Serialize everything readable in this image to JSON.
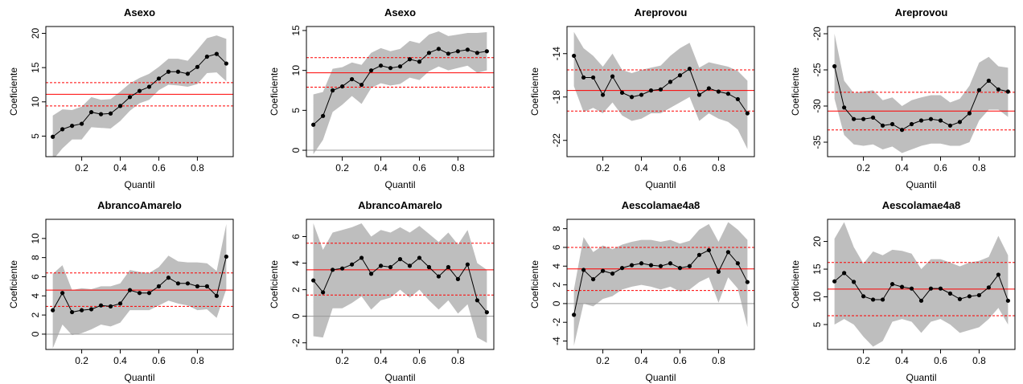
{
  "chart_data": [
    {
      "type": "line",
      "title": "Asexo",
      "x_label": "Quantil",
      "y_label": "Coeficiente",
      "x": [
        0.05,
        0.1,
        0.15,
        0.2,
        0.25,
        0.3,
        0.35,
        0.4,
        0.45,
        0.5,
        0.55,
        0.6,
        0.65,
        0.7,
        0.75,
        0.8,
        0.85,
        0.9,
        0.95
      ],
      "xlim": [
        0.014,
        0.986
      ],
      "xticks": [
        0.2,
        0.4,
        0.6,
        0.8
      ],
      "ylim": [
        2,
        21
      ],
      "yticks": [
        5,
        10,
        15,
        20
      ],
      "series": [
        {
          "color": "#000000",
          "values": [
            4.9,
            6.0,
            6.5,
            6.8,
            8.5,
            8.2,
            8.3,
            9.4,
            10.7,
            11.6,
            12.2,
            13.4,
            14.4,
            14.4,
            14.1,
            15.1,
            16.6,
            17.0,
            15.6
          ]
        }
      ],
      "band": {
        "color": "#bebebe",
        "lower": [
          1.5,
          3.2,
          4.5,
          4.5,
          6.3,
          6.2,
          6.1,
          7.2,
          8.7,
          9.8,
          10.3,
          11.7,
          12.5,
          12.4,
          12.2,
          12.6,
          14.2,
          14.3,
          13.0
        ],
        "upper": [
          8.0,
          8.9,
          8.8,
          9.3,
          10.7,
          10.3,
          10.4,
          11.5,
          12.7,
          13.5,
          14.1,
          15.1,
          16.3,
          16.3,
          16.0,
          17.6,
          19.3,
          19.7,
          19.2
        ]
      },
      "estimate": {
        "color": "#ff0000",
        "value": 11.1,
        "lower": 9.4,
        "upper": 12.8
      }
    },
    {
      "type": "line",
      "title": "Asexo",
      "x_label": "Quantil",
      "y_label": "Coeficiente",
      "x": [
        0.05,
        0.1,
        0.15,
        0.2,
        0.25,
        0.3,
        0.35,
        0.4,
        0.45,
        0.5,
        0.55,
        0.6,
        0.65,
        0.7,
        0.75,
        0.8,
        0.85,
        0.9,
        0.95
      ],
      "xlim": [
        0.014,
        0.986
      ],
      "xticks": [
        0.2,
        0.4,
        0.6,
        0.8
      ],
      "ylim": [
        -0.8,
        15.5
      ],
      "yticks": [
        0,
        5,
        10,
        15
      ],
      "series": [
        {
          "color": "#000000",
          "values": [
            3.2,
            4.3,
            7.5,
            8.0,
            8.9,
            8.2,
            10.0,
            10.6,
            10.3,
            10.5,
            11.4,
            11.1,
            12.2,
            12.7,
            12.1,
            12.4,
            12.6,
            12.2,
            12.4
          ]
        }
      ],
      "band": {
        "color": "#bebebe",
        "lower": [
          -0.5,
          1.3,
          4.8,
          5.7,
          6.8,
          5.8,
          7.8,
          8.4,
          8.1,
          8.3,
          9.1,
          8.8,
          9.9,
          10.5,
          10.0,
          10.3,
          10.6,
          9.7,
          10.0
        ],
        "upper": [
          7.0,
          7.3,
          10.2,
          10.4,
          11.0,
          10.7,
          12.2,
          12.8,
          12.4,
          12.7,
          13.7,
          13.4,
          14.5,
          14.9,
          14.3,
          14.5,
          14.7,
          14.7,
          14.8
        ]
      },
      "estimate": {
        "color": "#ff0000",
        "value": 9.7,
        "lower": 7.9,
        "upper": 11.6
      },
      "reference_line": {
        "color": "#999999",
        "value": 0
      }
    },
    {
      "type": "line",
      "title": "Areprovou",
      "x_label": "Quantil",
      "y_label": "Coeficiente",
      "x": [
        0.05,
        0.1,
        0.15,
        0.2,
        0.25,
        0.3,
        0.35,
        0.4,
        0.45,
        0.5,
        0.55,
        0.6,
        0.65,
        0.7,
        0.75,
        0.8,
        0.85,
        0.9,
        0.95
      ],
      "xlim": [
        0.014,
        0.986
      ],
      "xticks": [
        0.2,
        0.4,
        0.6,
        0.8
      ],
      "ylim": [
        -23.5,
        -11.5
      ],
      "yticks": [
        -22,
        -18,
        -14
      ],
      "series": [
        {
          "color": "#000000",
          "values": [
            -14.2,
            -16.2,
            -16.2,
            -17.8,
            -16.1,
            -17.6,
            -18.0,
            -17.8,
            -17.4,
            -17.3,
            -16.6,
            -16.0,
            -15.4,
            -17.8,
            -17.2,
            -17.5,
            -17.7,
            -18.2,
            -19.5
          ]
        }
      ],
      "band": {
        "color": "#bebebe",
        "lower": [
          -17.0,
          -19.4,
          -19.0,
          -19.5,
          -18.5,
          -19.7,
          -20.2,
          -20.0,
          -19.5,
          -19.5,
          -19.0,
          -18.5,
          -18.0,
          -20.2,
          -19.5,
          -20.0,
          -20.3,
          -21.0,
          -22.8
        ],
        "upper": [
          -12.0,
          -13.5,
          -14.2,
          -15.2,
          -14.0,
          -15.5,
          -15.8,
          -15.5,
          -15.3,
          -15.1,
          -14.2,
          -13.5,
          -13.0,
          -15.3,
          -14.8,
          -15.0,
          -15.2,
          -15.6,
          -16.5
        ]
      },
      "estimate": {
        "color": "#ff0000",
        "value": -17.4,
        "lower": -19.3,
        "upper": -15.5
      }
    },
    {
      "type": "line",
      "title": "Areprovou",
      "x_label": "Quantil",
      "y_label": "Coeficiente",
      "x": [
        0.05,
        0.1,
        0.15,
        0.2,
        0.25,
        0.3,
        0.35,
        0.4,
        0.45,
        0.5,
        0.55,
        0.6,
        0.65,
        0.7,
        0.75,
        0.8,
        0.85,
        0.9,
        0.95
      ],
      "xlim": [
        0.014,
        0.986
      ],
      "xticks": [
        0.2,
        0.4,
        0.6,
        0.8
      ],
      "ylim": [
        -37,
        -19
      ],
      "yticks": [
        -35,
        -30,
        -25,
        -20
      ],
      "series": [
        {
          "color": "#000000",
          "values": [
            -24.5,
            -30.2,
            -31.8,
            -31.8,
            -31.6,
            -32.7,
            -32.5,
            -33.3,
            -32.5,
            -32.0,
            -31.8,
            -32.0,
            -32.7,
            -32.2,
            -31.0,
            -27.8,
            -26.5,
            -27.7,
            -28.0
          ]
        }
      ],
      "band": {
        "color": "#bebebe",
        "lower": [
          -29.0,
          -34.0,
          -35.3,
          -35.5,
          -35.3,
          -36.0,
          -35.6,
          -36.5,
          -36.0,
          -35.5,
          -35.2,
          -35.2,
          -35.5,
          -35.5,
          -35.0,
          -32.0,
          -30.5,
          -30.5,
          -31.5
        ],
        "upper": [
          -20.0,
          -26.5,
          -28.2,
          -28.0,
          -27.8,
          -29.2,
          -28.8,
          -30.0,
          -29.2,
          -28.8,
          -28.5,
          -28.5,
          -29.5,
          -29.0,
          -27.2,
          -24.0,
          -23.2,
          -24.5,
          -24.7
        ]
      },
      "estimate": {
        "color": "#ff0000",
        "value": -30.7,
        "lower": -33.3,
        "upper": -28.1
      }
    },
    {
      "type": "line",
      "title": "AbrancoAmarelo",
      "x_label": "Quantil",
      "y_label": "Coeficiente",
      "x": [
        0.05,
        0.1,
        0.15,
        0.2,
        0.25,
        0.3,
        0.35,
        0.4,
        0.45,
        0.5,
        0.55,
        0.6,
        0.65,
        0.7,
        0.75,
        0.8,
        0.85,
        0.9,
        0.95
      ],
      "xlim": [
        0.014,
        0.986
      ],
      "xticks": [
        0.2,
        0.4,
        0.6,
        0.8
      ],
      "ylim": [
        -1.6,
        12
      ],
      "yticks": [
        0,
        2,
        4,
        6,
        8,
        10
      ],
      "series": [
        {
          "color": "#000000",
          "values": [
            2.5,
            4.3,
            2.3,
            2.5,
            2.6,
            3.0,
            2.9,
            3.2,
            4.6,
            4.3,
            4.3,
            5.0,
            5.9,
            5.3,
            5.3,
            5.0,
            5.0,
            4.0,
            8.1
          ]
        }
      ],
      "band": {
        "color": "#bebebe",
        "lower": [
          -1.5,
          1.0,
          -0.1,
          0.1,
          0.5,
          1.0,
          0.8,
          1.2,
          2.5,
          2.5,
          2.5,
          3.0,
          3.5,
          3.2,
          3.0,
          2.5,
          2.6,
          1.7,
          4.7
        ],
        "upper": [
          6.3,
          7.2,
          4.6,
          4.8,
          4.7,
          5.0,
          5.0,
          5.3,
          6.7,
          6.5,
          6.4,
          7.0,
          8.2,
          7.6,
          7.5,
          7.5,
          7.4,
          6.6,
          11.5
        ]
      },
      "estimate": {
        "color": "#ff0000",
        "value": 4.6,
        "lower": 2.9,
        "upper": 6.4
      },
      "reference_line": {
        "color": "#999999",
        "value": 0
      }
    },
    {
      "type": "line",
      "title": "AbrancoAmarelo",
      "x_label": "Quantil",
      "y_label": "Coeficiente",
      "x": [
        0.05,
        0.1,
        0.15,
        0.2,
        0.25,
        0.3,
        0.35,
        0.4,
        0.45,
        0.5,
        0.55,
        0.6,
        0.65,
        0.7,
        0.75,
        0.8,
        0.85,
        0.9,
        0.95
      ],
      "xlim": [
        0.014,
        0.986
      ],
      "xticks": [
        0.2,
        0.4,
        0.6,
        0.8
      ],
      "ylim": [
        -2.5,
        7.3
      ],
      "yticks": [
        -2,
        0,
        2,
        4,
        6
      ],
      "series": [
        {
          "color": "#000000",
          "values": [
            2.7,
            1.8,
            3.5,
            3.6,
            3.9,
            4.4,
            3.2,
            3.8,
            3.7,
            4.3,
            3.8,
            4.4,
            3.7,
            3.0,
            3.7,
            2.8,
            3.9,
            1.2,
            0.3
          ]
        }
      ],
      "band": {
        "color": "#bebebe",
        "lower": [
          -1.5,
          -1.6,
          0.6,
          0.6,
          1.0,
          1.5,
          0.5,
          1.2,
          1.4,
          2.0,
          1.4,
          2.0,
          1.2,
          0.5,
          1.2,
          0.2,
          0.9,
          -1.6,
          -2.0
        ],
        "upper": [
          7.0,
          5.0,
          6.3,
          6.5,
          6.7,
          7.0,
          6.0,
          6.5,
          6.3,
          6.7,
          6.3,
          6.8,
          6.2,
          5.6,
          6.3,
          5.4,
          6.5,
          4.0,
          3.5
        ]
      },
      "estimate": {
        "color": "#ff0000",
        "value": 3.5,
        "lower": 1.6,
        "upper": 5.5
      },
      "reference_line": {
        "color": "#999999",
        "value": 0
      }
    },
    {
      "type": "line",
      "title": "Aescolamae4a8",
      "x_label": "Quantil",
      "y_label": "Coeficiente",
      "x": [
        0.05,
        0.1,
        0.15,
        0.2,
        0.25,
        0.3,
        0.35,
        0.4,
        0.45,
        0.5,
        0.55,
        0.6,
        0.65,
        0.7,
        0.75,
        0.8,
        0.85,
        0.9,
        0.95
      ],
      "xlim": [
        0.014,
        0.986
      ],
      "xticks": [
        0.2,
        0.4,
        0.6,
        0.8
      ],
      "ylim": [
        -4.9,
        9
      ],
      "yticks": [
        -4,
        -2,
        0,
        2,
        4,
        6,
        8
      ],
      "series": [
        {
          "color": "#000000",
          "values": [
            -1.2,
            3.6,
            2.6,
            3.5,
            3.2,
            3.8,
            4.1,
            4.3,
            4.1,
            4.0,
            4.3,
            3.8,
            4.0,
            5.2,
            5.7,
            3.4,
            5.5,
            4.3,
            2.3
          ]
        }
      ],
      "band": {
        "color": "#bebebe",
        "lower": [
          -4.5,
          0.0,
          -0.3,
          0.5,
          0.8,
          1.5,
          1.8,
          2.0,
          1.8,
          1.5,
          1.8,
          1.3,
          1.5,
          2.3,
          2.8,
          0.1,
          2.8,
          1.6,
          -2.5
        ],
        "upper": [
          1.5,
          7.1,
          5.5,
          6.2,
          5.8,
          6.3,
          6.6,
          6.8,
          6.8,
          6.6,
          6.8,
          6.4,
          6.7,
          7.9,
          8.5,
          6.6,
          8.7,
          7.9,
          6.8
        ]
      },
      "estimate": {
        "color": "#ff0000",
        "value": 3.7,
        "lower": 1.4,
        "upper": 6.0
      },
      "reference_line": {
        "color": "#999999",
        "value": 0
      }
    },
    {
      "type": "line",
      "title": "Aescolamae4a8",
      "x_label": "Quantil",
      "y_label": "Coeficiente",
      "x": [
        0.05,
        0.1,
        0.15,
        0.2,
        0.25,
        0.3,
        0.35,
        0.4,
        0.45,
        0.5,
        0.55,
        0.6,
        0.65,
        0.7,
        0.75,
        0.8,
        0.85,
        0.9,
        0.95
      ],
      "xlim": [
        0.014,
        0.986
      ],
      "xticks": [
        0.2,
        0.4,
        0.6,
        0.8
      ],
      "ylim": [
        0.5,
        24
      ],
      "yticks": [
        5,
        10,
        15,
        20
      ],
      "series": [
        {
          "color": "#000000",
          "values": [
            12.8,
            14.3,
            12.7,
            10.1,
            9.5,
            9.5,
            12.3,
            11.8,
            11.5,
            9.3,
            11.5,
            11.5,
            10.6,
            9.6,
            10.1,
            10.3,
            11.7,
            14.0,
            9.3
          ]
        }
      ],
      "band": {
        "color": "#bebebe",
        "lower": [
          5.0,
          6.0,
          5.0,
          2.8,
          1.0,
          2.0,
          5.5,
          6.0,
          5.5,
          3.5,
          5.5,
          6.0,
          5.0,
          3.5,
          4.0,
          4.5,
          6.0,
          8.0,
          5.0
        ],
        "upper": [
          20.5,
          23.5,
          19.0,
          16.0,
          18.2,
          17.5,
          18.5,
          18.3,
          17.8,
          15.0,
          16.8,
          16.8,
          16.2,
          15.5,
          16.2,
          16.5,
          17.2,
          21.0,
          17.5
        ]
      },
      "estimate": {
        "color": "#ff0000",
        "value": 11.4,
        "lower": 6.6,
        "upper": 16.2
      }
    }
  ]
}
